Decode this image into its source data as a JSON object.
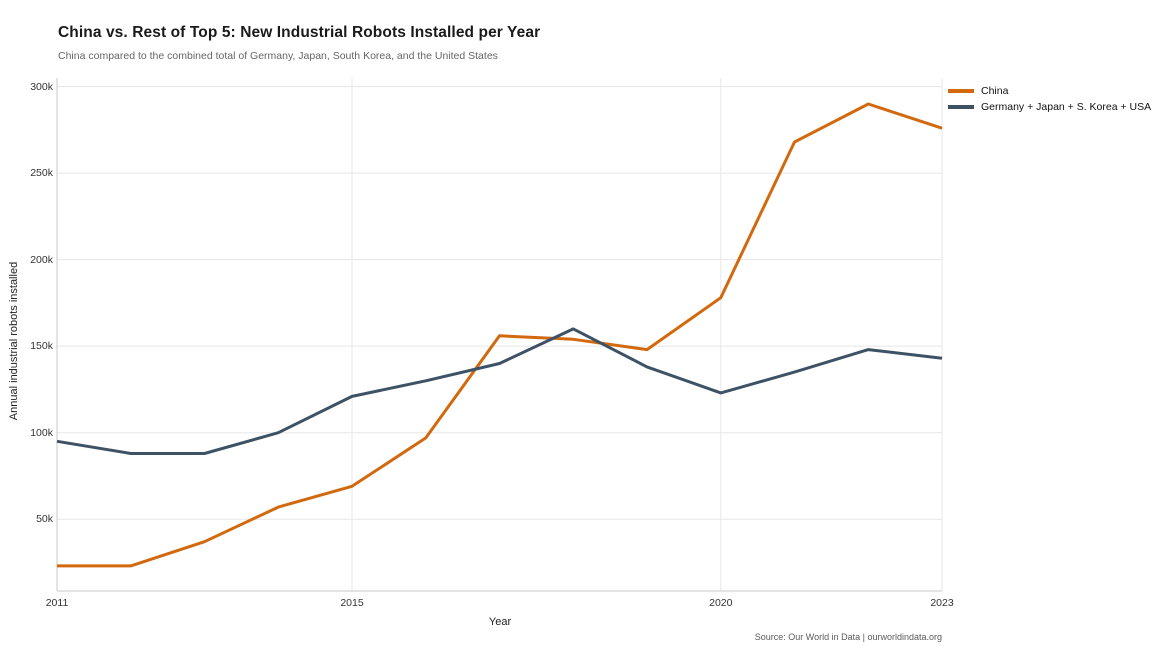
{
  "header": {
    "title": "China vs. Rest of Top 5: New Industrial Robots Installed per Year",
    "subtitle": "China compared to the combined total of Germany, Japan, South Korea, and the United States"
  },
  "footer": {
    "source": "Source: Our World in Data  |  ourworldindata.org"
  },
  "colors": {
    "china_line": "#d2690e",
    "combined_line": "#3e5266",
    "gridline": "#e7e7e7",
    "axis_line": "#c9c9c9"
  },
  "chart_data": {
    "type": "line",
    "title": "China vs. Rest of Top 5: New Industrial Robots Installed per Year",
    "subtitle": "China compared to the combined total of Germany, Japan, South Korea, and the United States",
    "xlabel": "Year",
    "ylabel": "Annual industrial robots installed",
    "x": [
      2011,
      2012,
      2013,
      2014,
      2015,
      2016,
      2017,
      2018,
      2019,
      2020,
      2021,
      2022,
      2023
    ],
    "series": [
      {
        "name": "China",
        "color": "#d2690e",
        "values": [
          23000,
          23000,
          37000,
          57000,
          69000,
          97000,
          156000,
          154000,
          148000,
          178000,
          268000,
          290000,
          276000
        ]
      },
      {
        "name": "Germany + Japan + S. Korea + USA",
        "color": "#3e5266",
        "values": [
          95000,
          88000,
          88000,
          100000,
          121000,
          130000,
          140000,
          160000,
          138000,
          123000,
          135000,
          148000,
          143000
        ]
      }
    ],
    "xlim": [
      2011,
      2023
    ],
    "ylim": [
      8500,
      305000
    ],
    "yticks": {
      "values": [
        50000,
        100000,
        150000,
        200000,
        250000,
        300000
      ],
      "labels": [
        "50k",
        "100k",
        "150k",
        "200k",
        "250k",
        "300k"
      ]
    },
    "xticks": {
      "values": [
        2011,
        2015,
        2020,
        2023
      ],
      "labels": [
        "2011",
        "2015",
        "2020",
        "2023"
      ]
    },
    "grid": true,
    "legend_position": "top-right"
  }
}
